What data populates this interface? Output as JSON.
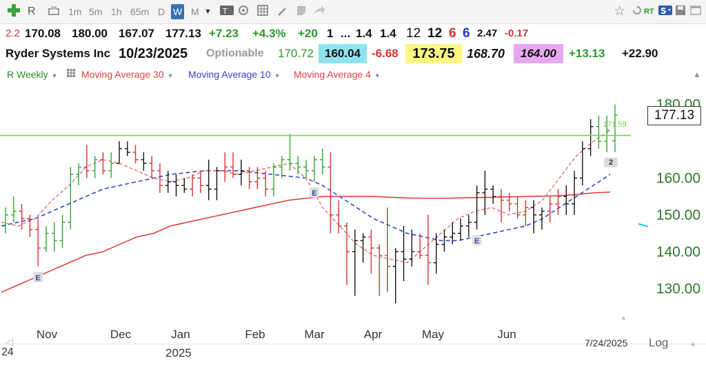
{
  "toolbar": {
    "add_icon_color": "#3aa23a",
    "symbol": "R",
    "periods": [
      "1m",
      "5m",
      "1h",
      "65m",
      "D",
      "W",
      "M"
    ],
    "selected_period": "W",
    "right_labels": {
      "rt": "RT"
    }
  },
  "quote_row": {
    "prefix": "2.2",
    "open": "170.08",
    "high": "180.00",
    "low": "167.07",
    "last": "177.13",
    "change": "+7.23",
    "change_pct": "+4.3%",
    "v20": "+20",
    "v1": "1",
    "ellipsis": "...",
    "r1": "1.4",
    "r2": "1.4",
    "n12a": "12",
    "n12b": "12",
    "n6a": "6",
    "n6b": "6",
    "n247": "2.47",
    "neg017": "-0.17"
  },
  "info_row": {
    "company": "Ryder Systems Inc",
    "date": "10/23/2025",
    "optionable": "Optionable",
    "v170": "170.72",
    "v160": "160.04",
    "v668": "-6.68",
    "v173": "173.75",
    "v168": "168.70",
    "v164": "164.00",
    "v1313": "+13.13",
    "v2290": "+22.90"
  },
  "indicators": [
    {
      "label": "R Weekly",
      "color": "#2a8a2a"
    },
    {
      "label": "Moving Average 30",
      "color": "#e04040"
    },
    {
      "label": "Moving Average 10",
      "color": "#3344cc"
    },
    {
      "label": "Moving Average 4",
      "color": "#e04040"
    }
  ],
  "price_tag": "177.13",
  "hline_label": "171.59",
  "marker_label": "2",
  "bottom": {
    "date": "7/24/2025",
    "log": "Log",
    "year": "2025",
    "left_partial": "24"
  },
  "colors": {
    "up": "#2eaa2e",
    "down": "#d23232",
    "neutral": "#111111",
    "ma30": "#e04040",
    "ma10": "#3344cc",
    "ma4": "#e87070",
    "hline": "#66dd44",
    "axis_text": "#2a7a2a"
  },
  "chart_data": {
    "type": "ohlc",
    "title": "Ryder Systems Inc — R Weekly",
    "y_range": [
      124,
      182
    ],
    "y_ticks": [
      130,
      140,
      150,
      160,
      170,
      180
    ],
    "y_tick_labels": [
      "130.00",
      "140.00",
      "150.00",
      "160.00",
      "",
      "180.00"
    ],
    "x_months": [
      "Nov",
      "Dec",
      "Jan",
      "Feb",
      "Mar",
      "Apr",
      "May",
      "Jun"
    ],
    "year_label": "2025",
    "horizontal_line": 171.59,
    "earnings_markers": [
      {
        "bar_index": 4,
        "label": "E"
      },
      {
        "bar_index": 38,
        "label": "E"
      },
      {
        "bar_index": 58,
        "label": "E"
      }
    ],
    "bars": [
      {
        "o": 147,
        "h": 152,
        "l": 145,
        "c": 150,
        "d": "up"
      },
      {
        "o": 150,
        "h": 155,
        "l": 148,
        "c": 151,
        "d": "up"
      },
      {
        "o": 151,
        "h": 153,
        "l": 146,
        "c": 149,
        "d": "down"
      },
      {
        "o": 149,
        "h": 150,
        "l": 144,
        "c": 146,
        "d": "down"
      },
      {
        "o": 146,
        "h": 149,
        "l": 136,
        "c": 141,
        "d": "down"
      },
      {
        "o": 141,
        "h": 147,
        "l": 140,
        "c": 145,
        "d": "up"
      },
      {
        "o": 145,
        "h": 148,
        "l": 140,
        "c": 143,
        "d": "up"
      },
      {
        "o": 143,
        "h": 150,
        "l": 141,
        "c": 148,
        "d": "up"
      },
      {
        "o": 148,
        "h": 163,
        "l": 146,
        "c": 161,
        "d": "up"
      },
      {
        "o": 161,
        "h": 164,
        "l": 158,
        "c": 163,
        "d": "up"
      },
      {
        "o": 163,
        "h": 169,
        "l": 160,
        "c": 162,
        "d": "down"
      },
      {
        "o": 162,
        "h": 166,
        "l": 160,
        "c": 165,
        "d": "up"
      },
      {
        "o": 165,
        "h": 167,
        "l": 161,
        "c": 162,
        "d": "down"
      },
      {
        "o": 162,
        "h": 167,
        "l": 160,
        "c": 164,
        "d": "up"
      },
      {
        "o": 164,
        "h": 170,
        "l": 164,
        "c": 168,
        "d": "neutral"
      },
      {
        "o": 168,
        "h": 170,
        "l": 166,
        "c": 167,
        "d": "neutral"
      },
      {
        "o": 167,
        "h": 169,
        "l": 164,
        "c": 165,
        "d": "down"
      },
      {
        "o": 165,
        "h": 167,
        "l": 162,
        "c": 164,
        "d": "neutral"
      },
      {
        "o": 164,
        "h": 166,
        "l": 160,
        "c": 162,
        "d": "down"
      },
      {
        "o": 162,
        "h": 164,
        "l": 156,
        "c": 158,
        "d": "down"
      },
      {
        "o": 158,
        "h": 162,
        "l": 156,
        "c": 159,
        "d": "neutral"
      },
      {
        "o": 159,
        "h": 161,
        "l": 155,
        "c": 158,
        "d": "neutral"
      },
      {
        "o": 158,
        "h": 160,
        "l": 156,
        "c": 157,
        "d": "neutral"
      },
      {
        "o": 157,
        "h": 161,
        "l": 155,
        "c": 160,
        "d": "down"
      },
      {
        "o": 160,
        "h": 162,
        "l": 156,
        "c": 158,
        "d": "down"
      },
      {
        "o": 158,
        "h": 165,
        "l": 154,
        "c": 157,
        "d": "neutral"
      },
      {
        "o": 157,
        "h": 163,
        "l": 154,
        "c": 162,
        "d": "neutral"
      },
      {
        "o": 162,
        "h": 167,
        "l": 159,
        "c": 163,
        "d": "down"
      },
      {
        "o": 163,
        "h": 167,
        "l": 160,
        "c": 161,
        "d": "down"
      },
      {
        "o": 161,
        "h": 165,
        "l": 158,
        "c": 162,
        "d": "neutral"
      },
      {
        "o": 162,
        "h": 163,
        "l": 157,
        "c": 159,
        "d": "down"
      },
      {
        "o": 159,
        "h": 163,
        "l": 157,
        "c": 160,
        "d": "down"
      },
      {
        "o": 160,
        "h": 162,
        "l": 155,
        "c": 157,
        "d": "down"
      },
      {
        "o": 157,
        "h": 164,
        "l": 155,
        "c": 163,
        "d": "up"
      },
      {
        "o": 163,
        "h": 166,
        "l": 160,
        "c": 165,
        "d": "up"
      },
      {
        "o": 165,
        "h": 172,
        "l": 162,
        "c": 164,
        "d": "up"
      },
      {
        "o": 164,
        "h": 166,
        "l": 161,
        "c": 163,
        "d": "up"
      },
      {
        "o": 163,
        "h": 165,
        "l": 160,
        "c": 162,
        "d": "up"
      },
      {
        "o": 162,
        "h": 166,
        "l": 159,
        "c": 165,
        "d": "up"
      },
      {
        "o": 165,
        "h": 168,
        "l": 161,
        "c": 163,
        "d": "up"
      },
      {
        "o": 163,
        "h": 167,
        "l": 145,
        "c": 150,
        "d": "down"
      },
      {
        "o": 150,
        "h": 154,
        "l": 145,
        "c": 147,
        "d": "down"
      },
      {
        "o": 147,
        "h": 148,
        "l": 131,
        "c": 140,
        "d": "down"
      },
      {
        "o": 140,
        "h": 146,
        "l": 128,
        "c": 143,
        "d": "neutral"
      },
      {
        "o": 143,
        "h": 145,
        "l": 137,
        "c": 144,
        "d": "neutral"
      },
      {
        "o": 144,
        "h": 146,
        "l": 134,
        "c": 141,
        "d": "down"
      },
      {
        "o": 141,
        "h": 142,
        "l": 128,
        "c": 139,
        "d": "down"
      },
      {
        "o": 139,
        "h": 152,
        "l": 129,
        "c": 136,
        "d": "down"
      },
      {
        "o": 136,
        "h": 141,
        "l": 126,
        "c": 140,
        "d": "neutral"
      },
      {
        "o": 140,
        "h": 147,
        "l": 132,
        "c": 138,
        "d": "neutral"
      },
      {
        "o": 138,
        "h": 146,
        "l": 136,
        "c": 140,
        "d": "neutral"
      },
      {
        "o": 140,
        "h": 145,
        "l": 138,
        "c": 139,
        "d": "down"
      },
      {
        "o": 139,
        "h": 150,
        "l": 131,
        "c": 137,
        "d": "down"
      },
      {
        "o": 137,
        "h": 145,
        "l": 134,
        "c": 142,
        "d": "neutral"
      },
      {
        "o": 142,
        "h": 146,
        "l": 140,
        "c": 144,
        "d": "neutral"
      },
      {
        "o": 144,
        "h": 148,
        "l": 142,
        "c": 145,
        "d": "neutral"
      },
      {
        "o": 145,
        "h": 149,
        "l": 143,
        "c": 147,
        "d": "neutral"
      },
      {
        "o": 147,
        "h": 150,
        "l": 144,
        "c": 148,
        "d": "neutral"
      },
      {
        "o": 148,
        "h": 158,
        "l": 146,
        "c": 156,
        "d": "neutral"
      },
      {
        "o": 156,
        "h": 162,
        "l": 150,
        "c": 157,
        "d": "neutral"
      },
      {
        "o": 157,
        "h": 158,
        "l": 153,
        "c": 155,
        "d": "neutral"
      },
      {
        "o": 155,
        "h": 157,
        "l": 148,
        "c": 154,
        "d": "down"
      },
      {
        "o": 154,
        "h": 156,
        "l": 151,
        "c": 153,
        "d": "down"
      },
      {
        "o": 153,
        "h": 155,
        "l": 149,
        "c": 150,
        "d": "down"
      },
      {
        "o": 150,
        "h": 154,
        "l": 147,
        "c": 152,
        "d": "down"
      },
      {
        "o": 152,
        "h": 154,
        "l": 145,
        "c": 150,
        "d": "neutral"
      },
      {
        "o": 150,
        "h": 152,
        "l": 146,
        "c": 151,
        "d": "neutral"
      },
      {
        "o": 151,
        "h": 155,
        "l": 148,
        "c": 153,
        "d": "down"
      },
      {
        "o": 153,
        "h": 157,
        "l": 150,
        "c": 155,
        "d": "down"
      },
      {
        "o": 155,
        "h": 158,
        "l": 150,
        "c": 153,
        "d": "neutral"
      },
      {
        "o": 153,
        "h": 162,
        "l": 150,
        "c": 160,
        "d": "neutral"
      },
      {
        "o": 160,
        "h": 170,
        "l": 158,
        "c": 168,
        "d": "neutral"
      },
      {
        "o": 168,
        "h": 176,
        "l": 166,
        "c": 174,
        "d": "neutral"
      },
      {
        "o": 174,
        "h": 177,
        "l": 168,
        "c": 170,
        "d": "up"
      },
      {
        "o": 170,
        "h": 177,
        "l": 167,
        "c": 173,
        "d": "up"
      },
      {
        "o": 170.08,
        "h": 180,
        "l": 167.07,
        "c": 177.13,
        "d": "up"
      }
    ],
    "ma30": [
      129,
      131,
      133,
      135,
      137,
      139,
      140,
      142,
      144,
      145,
      147,
      148,
      149,
      150,
      151,
      152,
      153,
      154,
      154.5,
      155,
      155,
      155,
      155,
      154.8,
      154.6,
      154.5,
      154.5,
      154.6,
      154.7,
      154.8,
      154.9,
      155,
      155.1,
      155.2,
      155.5,
      156,
      156.2
    ],
    "ma10": [
      147,
      148,
      149,
      151,
      153,
      155,
      157,
      158,
      159,
      160,
      161,
      161.5,
      162,
      162,
      162,
      161.5,
      161,
      160.5,
      160,
      158,
      155,
      152,
      149,
      147,
      145,
      144,
      143,
      143,
      144,
      145,
      146,
      147,
      149,
      152,
      155,
      158,
      161
    ],
    "ma4": [
      148,
      147,
      149,
      154,
      158,
      163,
      165,
      164,
      162,
      160,
      159,
      160,
      162,
      162,
      161,
      162,
      163,
      164,
      160,
      152,
      147,
      142,
      139,
      138,
      137,
      141,
      145,
      149,
      151,
      152,
      150,
      151,
      154,
      160,
      166,
      170,
      173
    ]
  }
}
